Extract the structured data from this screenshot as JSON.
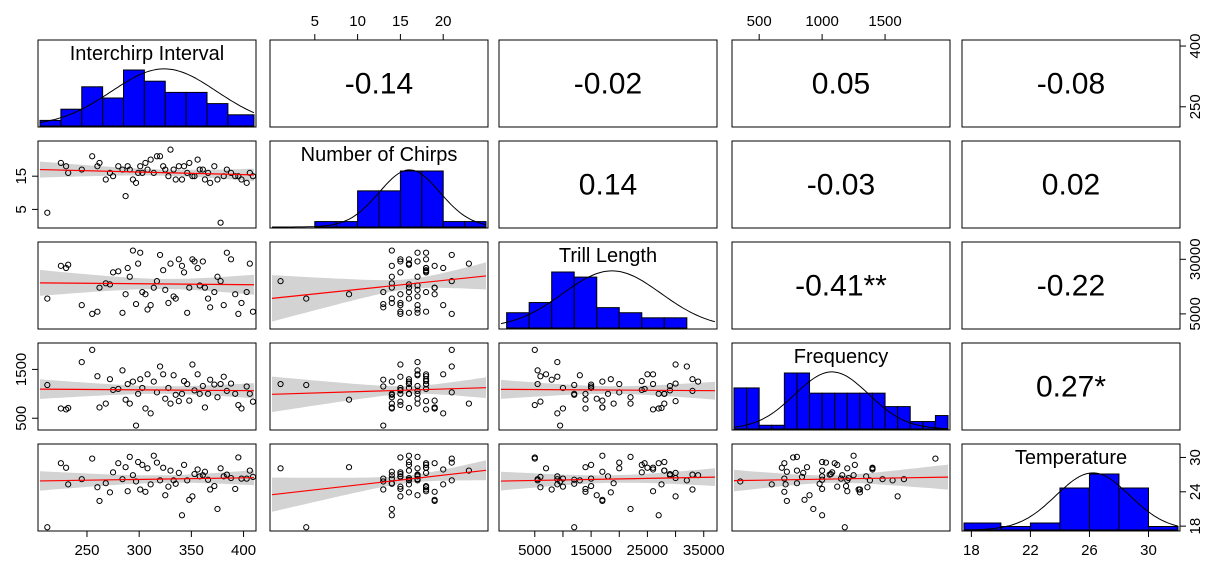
{
  "chart_data": {
    "type": "scatter-matrix",
    "variables": [
      "Interchirp Interval",
      "Number of Chirps",
      "Trill Length",
      "Frequency",
      "Temperature"
    ],
    "ranges": [
      [
        205,
        410
      ],
      [
        0,
        25
      ],
      [
        -1000,
        37000
      ],
      [
        300,
        2000
      ],
      [
        17.5,
        32
      ]
    ],
    "axis_ticks": [
      [
        250,
        300,
        350,
        400
      ],
      [
        5,
        10,
        15,
        20
      ],
      [
        5000,
        15000,
        25000,
        35000
      ],
      [
        500,
        1000,
        1500
      ],
      [
        18,
        22,
        26,
        30
      ]
    ],
    "axis_tick_labels": [
      [
        "250",
        "300",
        "350",
        "400"
      ],
      [
        "5",
        "10",
        "15",
        "20"
      ],
      [
        "5000",
        "15000",
        "25000",
        "35000"
      ],
      [
        "500",
        "1000",
        "1500"
      ],
      [
        "18",
        "22",
        "26",
        "30"
      ]
    ],
    "intermediate_ticks": [
      [],
      [],
      [
        10000,
        20000,
        30000
      ],
      [],
      []
    ],
    "left_ticks": {
      "Number of Chirps": [
        "5",
        "15"
      ],
      "Frequency": [
        "500",
        "1500"
      ]
    },
    "right_ticks": {
      "Interchirp Interval": [
        "250",
        "400"
      ],
      "Trill Length": [
        "5000",
        "30000"
      ],
      "Temperature": [
        "18",
        "24",
        "30"
      ]
    },
    "correlations": [
      {
        "row": 0,
        "col": 1,
        "label": "-0.14"
      },
      {
        "row": 0,
        "col": 2,
        "label": "-0.02"
      },
      {
        "row": 0,
        "col": 3,
        "label": "0.05"
      },
      {
        "row": 0,
        "col": 4,
        "label": "-0.08"
      },
      {
        "row": 1,
        "col": 2,
        "label": "0.14"
      },
      {
        "row": 1,
        "col": 3,
        "label": "-0.03"
      },
      {
        "row": 1,
        "col": 4,
        "label": "0.02"
      },
      {
        "row": 2,
        "col": 3,
        "label": "-0.41**"
      },
      {
        "row": 2,
        "col": 4,
        "label": "-0.22"
      },
      {
        "row": 3,
        "col": 4,
        "label": "0.27*"
      }
    ],
    "histograms": [
      {
        "edges": [
          205,
          225,
          245,
          265,
          285,
          305,
          325,
          345,
          365,
          385,
          410
        ],
        "counts": [
          1,
          3,
          7,
          5,
          10,
          8,
          6,
          6,
          4,
          2
        ]
      },
      {
        "edges": [
          0,
          2.5,
          5,
          7.5,
          10,
          12.5,
          15,
          17.5,
          20,
          22.5,
          25
        ],
        "counts": [
          0,
          0,
          0.15,
          0.15,
          1,
          1,
          1.55,
          1.55,
          0.15,
          0.15
        ]
      },
      {
        "edges": [
          0,
          4000,
          8000,
          12000,
          16000,
          20000,
          24000,
          28000,
          32000,
          36000
        ],
        "counts": [
          3,
          5,
          11,
          10,
          4,
          3,
          2,
          2,
          0
        ]
      },
      {
        "edges": [
          300,
          400,
          500,
          600,
          700,
          800,
          900,
          1000,
          1100,
          1200,
          1300,
          1400,
          1500,
          1600,
          1700,
          1800,
          1900,
          2000
        ],
        "counts": [
          0.55,
          0.55,
          0.05,
          0.05,
          0.75,
          0.75,
          0.48,
          0.48,
          0.48,
          0.48,
          0.48,
          0.48,
          0.3,
          0.3,
          0.1,
          0.1,
          0.18
        ]
      },
      {
        "edges": [
          17.5,
          20,
          22,
          24,
          26,
          28,
          30,
          32
        ],
        "counts": [
          1,
          0.5,
          1,
          6,
          8,
          6,
          0.5
        ]
      }
    ],
    "points": [
      [
        212,
        4,
        12000,
        1180,
        17.8
      ],
      [
        225,
        19,
        27000,
        700,
        29.0
      ],
      [
        230,
        18,
        26000,
        680,
        28.2
      ],
      [
        232,
        16,
        27500,
        710,
        25.3
      ],
      [
        245,
        17,
        9000,
        1650,
        26.2
      ],
      [
        255,
        21,
        5000,
        1900,
        29.8
      ],
      [
        260,
        18,
        6000,
        1360,
        24.8
      ],
      [
        262,
        19,
        17000,
        720,
        22.4
      ],
      [
        268,
        14,
        19000,
        800,
        25.5
      ],
      [
        272,
        16,
        18500,
        1300,
        23.9
      ],
      [
        275,
        15,
        24000,
        1080,
        27.4
      ],
      [
        280,
        18,
        24500,
        1100,
        29.0
      ],
      [
        284,
        17,
        5500,
        1480,
        26.2
      ],
      [
        287,
        9,
        14000,
        880,
        28.3
      ],
      [
        289,
        18,
        26000,
        1200,
        24.1
      ],
      [
        291,
        17,
        22000,
        800,
        30.1
      ],
      [
        294,
        14,
        34000,
        1250,
        26.9
      ],
      [
        297,
        13,
        9500,
        350,
        25.8
      ],
      [
        299,
        16,
        28000,
        1000,
        29.2
      ],
      [
        301,
        18,
        33000,
        1300,
        24.4
      ],
      [
        303,
        16,
        15000,
        1120,
        28.7
      ],
      [
        306,
        19,
        14000,
        700,
        24.0
      ],
      [
        308,
        17,
        7000,
        1400,
        28.1
      ],
      [
        311,
        20,
        9000,
        600,
        25.3
      ],
      [
        314,
        16,
        17000,
        1250,
        30.3
      ],
      [
        317,
        21,
        20000,
        1030,
        29.1
      ],
      [
        320,
        21,
        32000,
        1560,
        26.0
      ],
      [
        323,
        18,
        25000,
        1400,
        28.2
      ],
      [
        325,
        17,
        16000,
        900,
        23.4
      ],
      [
        328,
        15,
        10000,
        1120,
        24.9
      ],
      [
        330,
        23,
        28000,
        800,
        27.7
      ],
      [
        333,
        17,
        13000,
        1380,
        26.0
      ],
      [
        335,
        14,
        12000,
        980,
        25.4
      ],
      [
        338,
        18,
        30000,
        850,
        27.3
      ],
      [
        341,
        14,
        27000,
        1000,
        19.9
      ],
      [
        343,
        18,
        24000,
        1260,
        28.7
      ],
      [
        346,
        16,
        5500,
        1200,
        26.0
      ],
      [
        348,
        19,
        17000,
        860,
        22.6
      ],
      [
        351,
        15,
        30000,
        1600,
        23.2
      ],
      [
        353,
        15,
        29000,
        1070,
        27.1
      ],
      [
        356,
        20,
        26000,
        1400,
        27.9
      ],
      [
        358,
        17,
        18000,
        1000,
        26.7
      ],
      [
        361,
        17,
        29000,
        1160,
        26.9
      ],
      [
        363,
        14,
        17000,
        720,
        27.5
      ],
      [
        366,
        16,
        12000,
        1000,
        26.1
      ],
      [
        368,
        13,
        8000,
        1290,
        24.4
      ],
      [
        372,
        18,
        15000,
        1190,
        25.0
      ],
      [
        375,
        14,
        22000,
        930,
        21.0
      ],
      [
        378,
        1,
        20000,
        1200,
        28.1
      ],
      [
        381,
        15,
        9000,
        1350,
        26.7
      ],
      [
        384,
        17,
        33000,
        1060,
        27.0
      ],
      [
        388,
        16,
        30000,
        1210,
        26.4
      ],
      [
        392,
        15,
        14000,
        1000,
        24.5
      ],
      [
        395,
        15,
        5000,
        770,
        30.0
      ],
      [
        398,
        14,
        10000,
        700,
        26.3
      ],
      [
        403,
        13,
        15000,
        1150,
        26.3
      ],
      [
        406,
        16,
        28000,
        1000,
        27.7
      ],
      [
        409,
        15,
        6000,
        840,
        26.6
      ]
    ]
  }
}
